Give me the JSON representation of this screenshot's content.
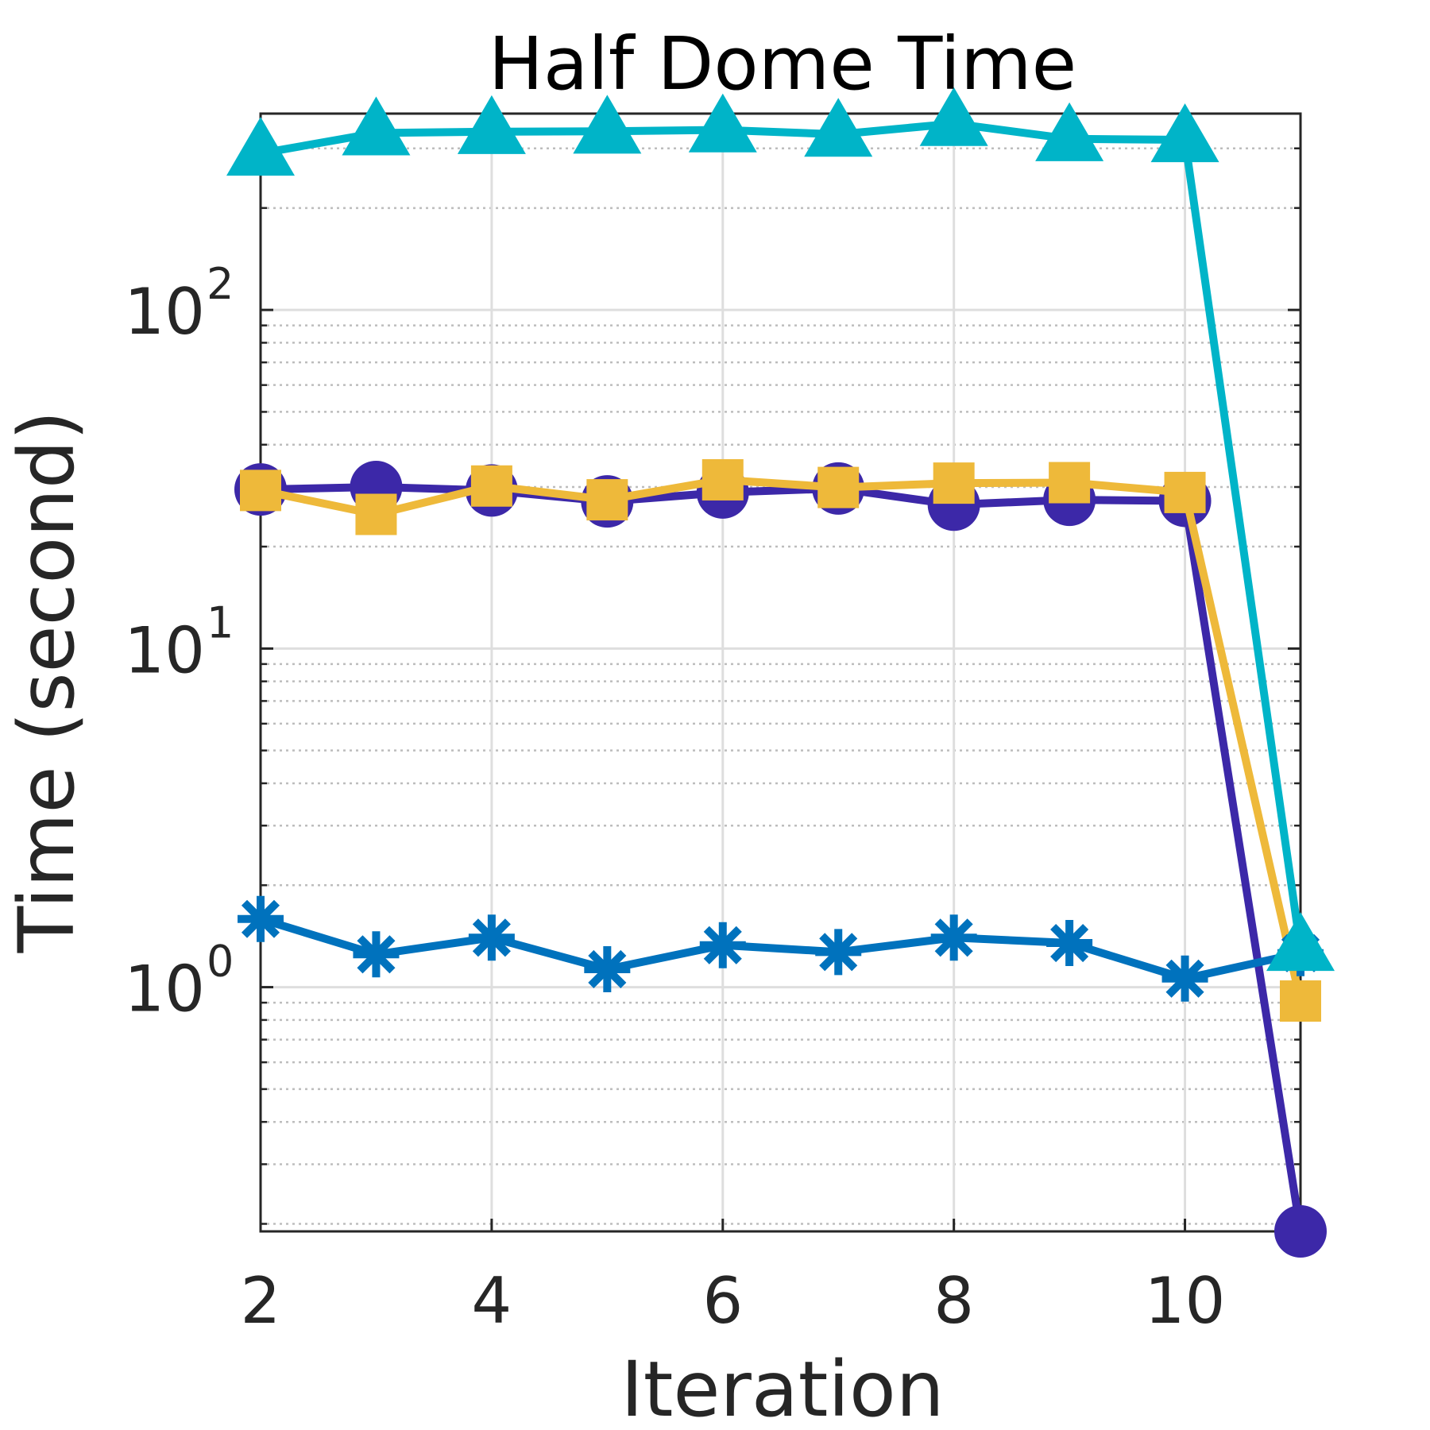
{
  "chart_data": {
    "type": "line",
    "title": "Half Dome Time",
    "xlabel": "Iteration",
    "ylabel": "Time (second)",
    "yscale": "log",
    "xlim": [
      2,
      11
    ],
    "ylim": [
      0.19,
      380
    ],
    "x": [
      2,
      3,
      4,
      5,
      6,
      7,
      8,
      9,
      10,
      11
    ],
    "x_ticks": [
      2,
      4,
      6,
      8,
      10
    ],
    "x_tick_labels": [
      "2",
      "4",
      "6",
      "8",
      "10"
    ],
    "y_ticks": [
      1,
      10,
      100
    ],
    "y_tick_labels": [
      {
        "base": "10",
        "exp": "0"
      },
      {
        "base": "10",
        "exp": "1"
      },
      {
        "base": "10",
        "exp": "2"
      }
    ],
    "grid": true,
    "legend": "none",
    "series": [
      {
        "name": "series-circle",
        "marker": "circle",
        "color": "#3c28a8",
        "values": [
          29.5,
          30.0,
          29.3,
          27.2,
          28.9,
          29.7,
          26.6,
          27.5,
          27.3,
          0.19
        ]
      },
      {
        "name": "series-square",
        "marker": "square",
        "color": "#eeb93a",
        "values": [
          29.3,
          24.9,
          30.2,
          27.5,
          31.5,
          29.9,
          30.8,
          30.9,
          28.9,
          0.91
        ]
      },
      {
        "name": "series-asterisk",
        "marker": "asterisk",
        "color": "#0072bd",
        "values": [
          1.59,
          1.25,
          1.4,
          1.13,
          1.33,
          1.27,
          1.4,
          1.35,
          1.06,
          1.26
        ]
      },
      {
        "name": "series-triangle",
        "marker": "triangle",
        "color": "#00b4c8",
        "values": [
          290,
          333,
          336,
          337,
          340,
          330,
          355,
          320,
          318,
          1.3
        ]
      }
    ]
  }
}
